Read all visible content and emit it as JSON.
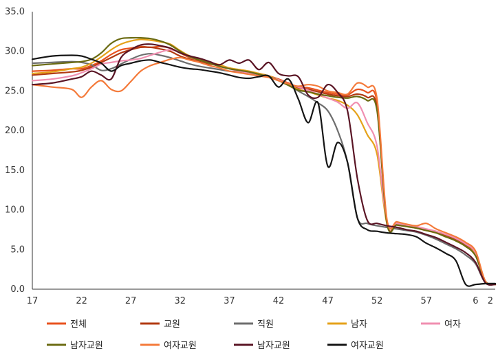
{
  "chart_data": {
    "type": "line",
    "title": "",
    "xlabel": "",
    "ylabel": "",
    "ylim": [
      0,
      35
    ],
    "y_ticks": [
      "0.0",
      "5.0",
      "10.0",
      "15.0",
      "20.0",
      "25.0",
      "30.0",
      "35.0"
    ],
    "x_ticks": [
      "17",
      "22",
      "27",
      "32",
      "37",
      "42",
      "47",
      "52",
      "57",
      "6",
      "2"
    ],
    "grid": false,
    "legend_position": "bottom",
    "x": [
      17,
      19,
      21,
      22,
      23,
      24,
      25,
      26,
      27,
      28,
      29,
      30,
      31,
      32,
      33,
      34,
      35,
      36,
      37,
      38,
      39,
      40,
      41,
      42,
      43,
      44,
      45,
      46,
      47,
      48,
      49,
      50,
      51,
      52,
      53,
      54,
      55,
      56,
      57,
      58,
      59,
      60,
      61,
      62,
      63,
      64
    ],
    "series": [
      {
        "name": "전체",
        "color": "#e8531f",
        "values": [
          27.5,
          27.6,
          27.8,
          27.8,
          28.2,
          28.8,
          29.6,
          30.2,
          30.4,
          30.6,
          30.5,
          30.6,
          30.4,
          29.8,
          29.2,
          28.9,
          28.6,
          28.2,
          27.9,
          27.6,
          27.4,
          27.2,
          26.9,
          26.5,
          26.0,
          25.5,
          25.4,
          25.1,
          24.8,
          24.6,
          24.5,
          25.2,
          24.8,
          23.5,
          8.5,
          8.2,
          8.0,
          7.8,
          7.5,
          7.2,
          6.8,
          6.3,
          5.6,
          4.5,
          1.0,
          0.6
        ]
      },
      {
        "name": "교원",
        "color": "#b23a12",
        "values": [
          27.0,
          27.2,
          27.4,
          27.6,
          28.0,
          28.6,
          29.2,
          29.8,
          30.2,
          30.5,
          30.5,
          30.3,
          30.0,
          29.4,
          29.0,
          28.7,
          28.4,
          28.2,
          27.8,
          27.6,
          27.4,
          27.1,
          26.8,
          26.4,
          25.9,
          25.4,
          25.2,
          24.9,
          24.6,
          24.4,
          24.3,
          24.6,
          24.2,
          22.8,
          8.4,
          8.2,
          8.0,
          7.7,
          7.4,
          7.1,
          6.7,
          6.2,
          5.5,
          4.3,
          1.0,
          0.6
        ]
      },
      {
        "name": "직원",
        "color": "#6e6e6e",
        "values": [
          28.5,
          28.6,
          28.7,
          28.6,
          28.3,
          27.6,
          27.8,
          28.4,
          29.0,
          29.5,
          29.7,
          29.5,
          29.2,
          28.8,
          28.4,
          28.1,
          27.9,
          27.7,
          27.5,
          27.4,
          27.2,
          27.0,
          26.8,
          26.4,
          25.8,
          25.0,
          24.3,
          23.5,
          22.5,
          20.0,
          16.0,
          9.0,
          8.3,
          8.0,
          7.8,
          7.6,
          7.4,
          7.2,
          6.8,
          6.3,
          5.7,
          5.1,
          4.3,
          3.2,
          0.8,
          0.6
        ]
      },
      {
        "name": "남자",
        "color": "#e5a21a",
        "values": [
          27.2,
          27.4,
          27.8,
          28.0,
          28.5,
          29.3,
          30.2,
          30.9,
          31.3,
          31.5,
          31.4,
          31.2,
          30.9,
          30.1,
          29.4,
          29.0,
          28.6,
          28.3,
          27.9,
          27.7,
          27.5,
          27.2,
          26.9,
          26.4,
          25.8,
          25.2,
          24.9,
          24.5,
          24.1,
          23.8,
          23.2,
          22.0,
          19.5,
          17.0,
          8.3,
          8.1,
          7.9,
          7.7,
          7.4,
          7.1,
          6.6,
          6.1,
          5.4,
          4.3,
          1.0,
          0.6
        ]
      },
      {
        "name": "여자",
        "color": "#f08fb0",
        "values": [
          26.3,
          26.5,
          26.9,
          27.3,
          27.8,
          28.4,
          28.6,
          28.8,
          28.9,
          29.1,
          29.5,
          29.9,
          30.2,
          29.9,
          29.3,
          28.9,
          28.5,
          28.1,
          27.8,
          27.5,
          27.3,
          27.1,
          26.8,
          26.4,
          25.9,
          25.5,
          25.1,
          24.6,
          24.1,
          23.6,
          22.8,
          23.5,
          21.0,
          18.0,
          8.6,
          8.3,
          8.1,
          7.9,
          7.6,
          7.3,
          6.9,
          6.4,
          5.7,
          4.6,
          1.0,
          0.6
        ]
      },
      {
        "name": "남자교원",
        "color": "#6b6b12",
        "values": [
          28.2,
          28.4,
          28.6,
          28.7,
          29.0,
          29.8,
          31.0,
          31.6,
          31.7,
          31.7,
          31.6,
          31.3,
          30.8,
          30.0,
          29.3,
          28.9,
          28.5,
          28.1,
          27.8,
          27.6,
          27.4,
          27.1,
          26.8,
          26.3,
          25.7,
          25.1,
          24.9,
          24.6,
          24.4,
          24.2,
          24.1,
          24.3,
          23.8,
          22.5,
          8.3,
          8.1,
          7.9,
          7.7,
          7.4,
          7.1,
          6.6,
          6.1,
          5.4,
          4.2,
          1.0,
          0.6
        ]
      },
      {
        "name": "여자교원",
        "color": "#f47a3a",
        "values": [
          25.8,
          25.5,
          25.2,
          24.2,
          25.5,
          26.3,
          25.2,
          25.0,
          26.2,
          27.5,
          28.2,
          28.6,
          29.0,
          29.2,
          28.9,
          28.6,
          28.2,
          27.9,
          27.5,
          27.3,
          27.1,
          26.9,
          26.7,
          26.3,
          25.9,
          25.6,
          25.8,
          25.6,
          25.0,
          24.8,
          24.6,
          26.0,
          25.5,
          24.0,
          8.8,
          8.5,
          8.2,
          8.0,
          8.3,
          7.6,
          7.1,
          6.6,
          5.9,
          4.8,
          1.0,
          0.6
        ]
      },
      {
        "name": "남자교원",
        "color": "#5a1525",
        "values": [
          25.8,
          26.0,
          26.5,
          26.8,
          27.5,
          27.0,
          26.5,
          29.2,
          30.2,
          30.8,
          30.9,
          30.7,
          30.4,
          29.8,
          29.4,
          29.1,
          28.7,
          28.3,
          28.9,
          28.5,
          28.9,
          27.7,
          28.6,
          27.2,
          26.9,
          26.8,
          24.5,
          24.2,
          25.8,
          24.8,
          22.5,
          14.0,
          8.7,
          8.3,
          8.0,
          7.8,
          7.5,
          7.3,
          6.9,
          6.5,
          5.9,
          5.3,
          4.6,
          3.4,
          0.8,
          0.6
        ]
      },
      {
        "name": "여자교원",
        "color": "#151515",
        "values": [
          29.0,
          29.4,
          29.5,
          29.4,
          29.0,
          28.5,
          27.5,
          28.2,
          28.5,
          28.8,
          28.9,
          28.6,
          28.3,
          28.0,
          27.8,
          27.7,
          27.5,
          27.3,
          27.0,
          26.7,
          26.6,
          26.8,
          26.9,
          25.5,
          26.5,
          24.0,
          21.0,
          23.5,
          15.5,
          18.5,
          16.0,
          9.0,
          7.5,
          7.3,
          7.1,
          7.0,
          6.9,
          6.6,
          5.8,
          5.2,
          4.5,
          3.6,
          0.6,
          0.6,
          0.7,
          0.7
        ]
      }
    ]
  }
}
